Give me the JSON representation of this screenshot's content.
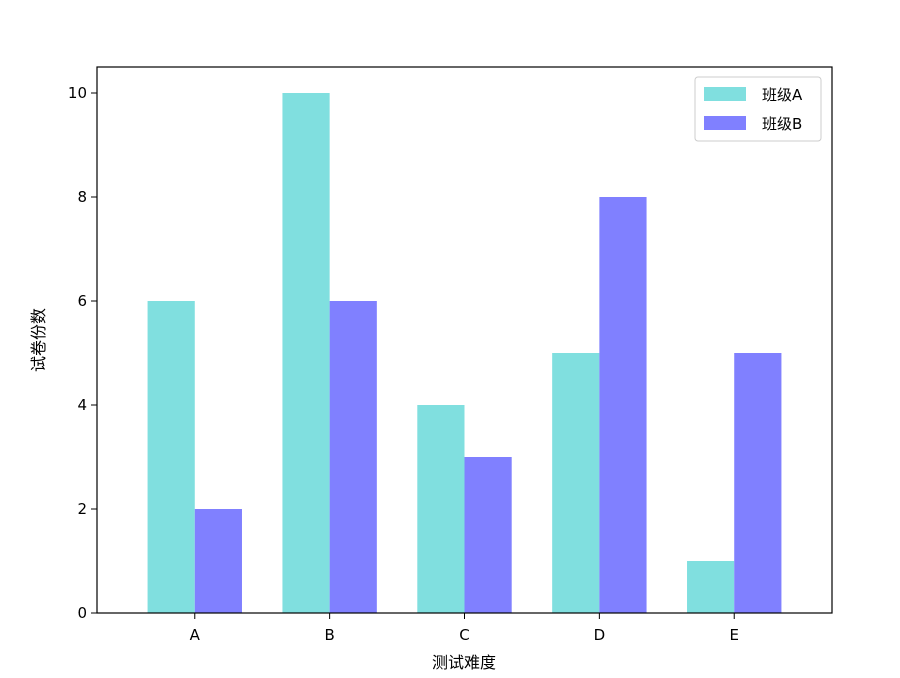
{
  "chart_data": {
    "type": "bar",
    "title": "",
    "xlabel": "测试难度",
    "ylabel": "试卷份数",
    "categories": [
      "A",
      "B",
      "C",
      "D",
      "E"
    ],
    "ylim": [
      0,
      10.5
    ],
    "yticks": [
      0,
      2,
      4,
      6,
      8,
      10
    ],
    "grid": false,
    "legend_position": "top-right",
    "series": [
      {
        "name": "班级A",
        "color": "#80DFDF",
        "values": [
          6,
          10,
          4,
          5,
          1
        ]
      },
      {
        "name": "班级B",
        "color": "#8080FF",
        "values": [
          2,
          6,
          3,
          8,
          5
        ]
      }
    ]
  }
}
